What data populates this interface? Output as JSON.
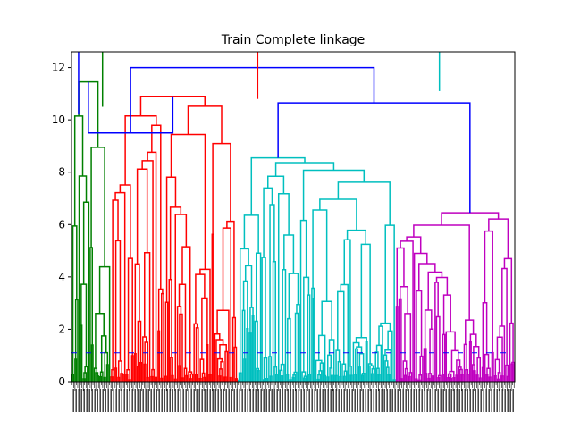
{
  "chart_data": {
    "type": "dendrogram",
    "title": "Train Complete linkage",
    "xlabel": "",
    "ylabel": "",
    "ylim": [
      0,
      12.6
    ],
    "yticks": [
      "0",
      "2",
      "4",
      "6",
      "8",
      "10",
      "12"
    ],
    "grid": false,
    "legend": "none",
    "cluster_colors": [
      "#008000",
      "#ff0000",
      "#00bfbf",
      "#bf00bf"
    ],
    "link_color_above_threshold": "#0000ff",
    "clusters": [
      {
        "color": "#008000",
        "leaf_count": 28,
        "max_height": 11.45
      },
      {
        "color": "#ff0000",
        "leaf_count": 92,
        "max_height": 10.9
      },
      {
        "color": "#00bfbf",
        "leaf_count": 114,
        "max_height": 8.55
      },
      {
        "color": "#bf00bf",
        "leaf_count": 86,
        "max_height": 6.45
      }
    ],
    "upper_links": [
      {
        "height": 12.0,
        "color": "#0000ff"
      },
      {
        "height": 10.6,
        "color": "#0000ff"
      },
      {
        "height": 9.5,
        "color": "#0000ff"
      },
      {
        "height": 7.2,
        "color": "#ff0000"
      },
      {
        "height": 6.7,
        "color": "#ff0000"
      },
      {
        "height": 6.45,
        "color": "#0000ff"
      },
      {
        "height": 5.45,
        "color": "#00bfbf"
      }
    ]
  }
}
